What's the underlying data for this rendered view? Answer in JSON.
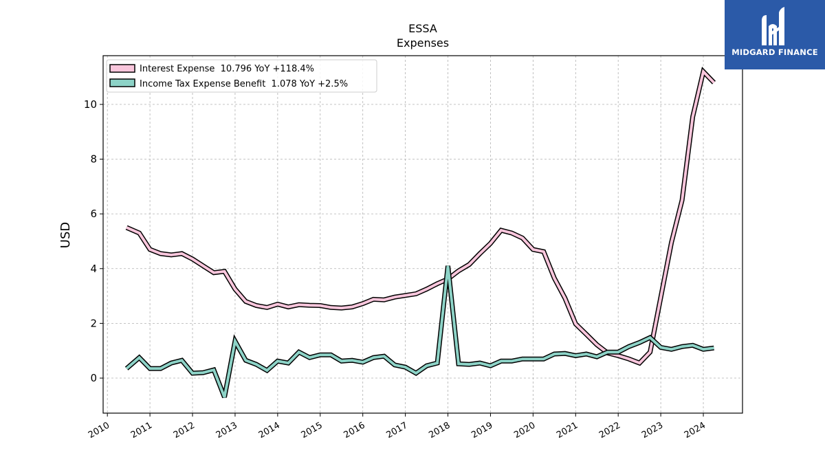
{
  "logo": {
    "text": "MIDGARD FINANCE",
    "icon": "stylized-m-logo-icon",
    "bg_color": "#2b5aa8"
  },
  "chart_data": {
    "type": "line",
    "title": "ESSA",
    "subtitle": "Expenses",
    "xlabel": "",
    "ylabel": "USD",
    "xlim": [
      2009.9,
      2024.92
    ],
    "ylim": [
      -1.28,
      11.78
    ],
    "xticks": [
      2010,
      2011,
      2012,
      2013,
      2014,
      2015,
      2016,
      2017,
      2018,
      2019,
      2020,
      2021,
      2022,
      2023,
      2024
    ],
    "xtick_labels": [
      "2010",
      "2011",
      "2012",
      "2013",
      "2014",
      "2015",
      "2016",
      "2017",
      "2018",
      "2019",
      "2020",
      "2021",
      "2022",
      "2023",
      "2024"
    ],
    "yticks": [
      0,
      2,
      4,
      6,
      8,
      10
    ],
    "ytick_labels": [
      "0",
      "2",
      "4",
      "6",
      "8",
      "10"
    ],
    "grid": true,
    "legend_position": "top-left",
    "series": [
      {
        "name": "Interest Expense",
        "legend_label": "Interest Expense  10.796 YoY +118.4%",
        "color": "#f9c6dc",
        "points": [
          [
            2010.45,
            5.5
          ],
          [
            2010.75,
            5.3
          ],
          [
            2011.0,
            4.7
          ],
          [
            2011.25,
            4.55
          ],
          [
            2011.5,
            4.5
          ],
          [
            2011.75,
            4.55
          ],
          [
            2012.0,
            4.35
          ],
          [
            2012.25,
            4.1
          ],
          [
            2012.5,
            3.85
          ],
          [
            2012.75,
            3.9
          ],
          [
            2013.0,
            3.25
          ],
          [
            2013.25,
            2.8
          ],
          [
            2013.5,
            2.65
          ],
          [
            2013.75,
            2.58
          ],
          [
            2014.0,
            2.7
          ],
          [
            2014.25,
            2.6
          ],
          [
            2014.5,
            2.68
          ],
          [
            2014.75,
            2.66
          ],
          [
            2015.0,
            2.65
          ],
          [
            2015.25,
            2.58
          ],
          [
            2015.5,
            2.56
          ],
          [
            2015.75,
            2.6
          ],
          [
            2016.0,
            2.72
          ],
          [
            2016.25,
            2.88
          ],
          [
            2016.5,
            2.86
          ],
          [
            2016.75,
            2.96
          ],
          [
            2017.0,
            3.02
          ],
          [
            2017.25,
            3.08
          ],
          [
            2017.5,
            3.25
          ],
          [
            2017.75,
            3.45
          ],
          [
            2018.0,
            3.62
          ],
          [
            2018.25,
            3.92
          ],
          [
            2018.5,
            4.15
          ],
          [
            2018.75,
            4.55
          ],
          [
            2019.0,
            4.92
          ],
          [
            2019.25,
            5.4
          ],
          [
            2019.5,
            5.3
          ],
          [
            2019.75,
            5.12
          ],
          [
            2020.0,
            4.7
          ],
          [
            2020.25,
            4.62
          ],
          [
            2020.5,
            3.65
          ],
          [
            2020.75,
            2.92
          ],
          [
            2021.0,
            1.98
          ],
          [
            2021.25,
            1.6
          ],
          [
            2021.5,
            1.22
          ],
          [
            2021.75,
            0.92
          ],
          [
            2022.0,
            0.82
          ],
          [
            2022.25,
            0.7
          ],
          [
            2022.5,
            0.55
          ],
          [
            2022.75,
            0.95
          ],
          [
            2023.0,
            2.95
          ],
          [
            2023.25,
            4.95
          ],
          [
            2023.5,
            6.5
          ],
          [
            2023.75,
            9.55
          ],
          [
            2024.0,
            11.2
          ],
          [
            2024.25,
            10.796
          ]
        ]
      },
      {
        "name": "Income Tax Expense Benefit",
        "legend_label": "Income Tax Expense Benefit  1.078 YoY +2.5%",
        "color": "#8dd3c7",
        "points": [
          [
            2010.45,
            0.35
          ],
          [
            2010.75,
            0.75
          ],
          [
            2011.0,
            0.35
          ],
          [
            2011.25,
            0.35
          ],
          [
            2011.5,
            0.55
          ],
          [
            2011.75,
            0.65
          ],
          [
            2012.0,
            0.18
          ],
          [
            2012.25,
            0.2
          ],
          [
            2012.5,
            0.3
          ],
          [
            2012.75,
            -0.7
          ],
          [
            2013.0,
            1.35
          ],
          [
            2013.25,
            0.65
          ],
          [
            2013.5,
            0.5
          ],
          [
            2013.75,
            0.28
          ],
          [
            2014.0,
            0.62
          ],
          [
            2014.25,
            0.55
          ],
          [
            2014.5,
            0.95
          ],
          [
            2014.75,
            0.75
          ],
          [
            2015.0,
            0.85
          ],
          [
            2015.25,
            0.85
          ],
          [
            2015.5,
            0.62
          ],
          [
            2015.75,
            0.65
          ],
          [
            2016.0,
            0.58
          ],
          [
            2016.25,
            0.75
          ],
          [
            2016.5,
            0.8
          ],
          [
            2016.75,
            0.48
          ],
          [
            2017.0,
            0.4
          ],
          [
            2017.25,
            0.18
          ],
          [
            2017.5,
            0.45
          ],
          [
            2017.75,
            0.55
          ],
          [
            2018.0,
            4.1
          ],
          [
            2018.25,
            0.52
          ],
          [
            2018.5,
            0.5
          ],
          [
            2018.75,
            0.55
          ],
          [
            2019.0,
            0.45
          ],
          [
            2019.25,
            0.62
          ],
          [
            2019.5,
            0.62
          ],
          [
            2019.75,
            0.7
          ],
          [
            2020.0,
            0.7
          ],
          [
            2020.25,
            0.7
          ],
          [
            2020.5,
            0.88
          ],
          [
            2020.75,
            0.9
          ],
          [
            2021.0,
            0.82
          ],
          [
            2021.25,
            0.88
          ],
          [
            2021.5,
            0.78
          ],
          [
            2021.75,
            0.95
          ],
          [
            2022.0,
            0.95
          ],
          [
            2022.25,
            1.15
          ],
          [
            2022.5,
            1.3
          ],
          [
            2022.75,
            1.48
          ],
          [
            2023.0,
            1.12
          ],
          [
            2023.25,
            1.05
          ],
          [
            2023.5,
            1.15
          ],
          [
            2023.75,
            1.2
          ],
          [
            2024.0,
            1.05
          ],
          [
            2024.25,
            1.1
          ]
        ]
      }
    ]
  }
}
